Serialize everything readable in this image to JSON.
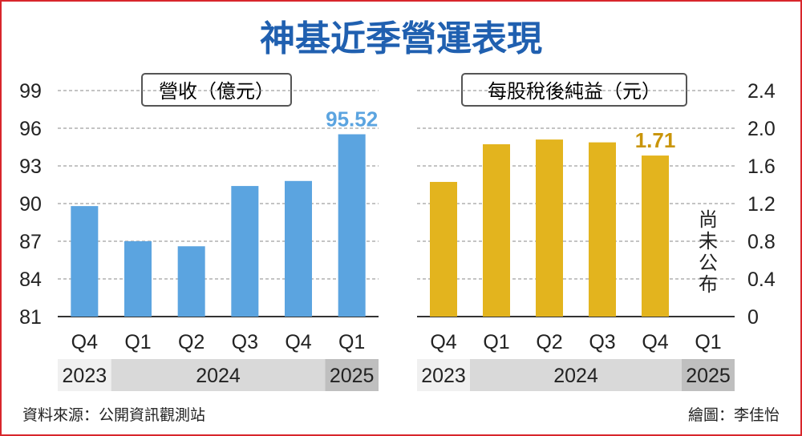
{
  "title": "神基近季營運表現",
  "source": "資料來源：公開資訊觀測站",
  "credit": "繪圖：李佳怡",
  "colors": {
    "frame": "#d8262c",
    "title": "#2060b0",
    "revenue": "#5ba4e0",
    "eps": "#e3b41e",
    "rev_label": "#5ba4e0",
    "eps_label": "#c9950a"
  },
  "chart_data": [
    {
      "type": "bar",
      "title": "營收（億元）",
      "categories": [
        "Q4",
        "Q1",
        "Q2",
        "Q3",
        "Q4",
        "Q1"
      ],
      "years": [
        {
          "label": "2023",
          "span": 1
        },
        {
          "label": "2024",
          "span": 4
        },
        {
          "label": "2025",
          "span": 1
        }
      ],
      "values": [
        89.8,
        87.0,
        86.6,
        91.4,
        91.8,
        95.52
      ],
      "highlight": {
        "index": 5,
        "label": "95.52"
      },
      "ylim": [
        81,
        99
      ],
      "yticks": [
        "81",
        "84",
        "87",
        "90",
        "93",
        "96",
        "99"
      ],
      "grid": true
    },
    {
      "type": "bar",
      "title": "每股稅後純益（元）",
      "categories": [
        "Q4",
        "Q1",
        "Q2",
        "Q3",
        "Q4",
        "Q1"
      ],
      "years": [
        {
          "label": "2023",
          "span": 1
        },
        {
          "label": "2024",
          "span": 4
        },
        {
          "label": "2025",
          "span": 1
        }
      ],
      "values": [
        1.43,
        1.83,
        1.88,
        1.85,
        1.71,
        null
      ],
      "highlight": {
        "index": 4,
        "label": "1.71"
      },
      "na_label": "尚未公布",
      "ylim": [
        0,
        2.4
      ],
      "yticks": [
        "0",
        "0.4",
        "0.8",
        "1.2",
        "1.6",
        "2.0",
        "2.4"
      ],
      "grid": true
    }
  ]
}
